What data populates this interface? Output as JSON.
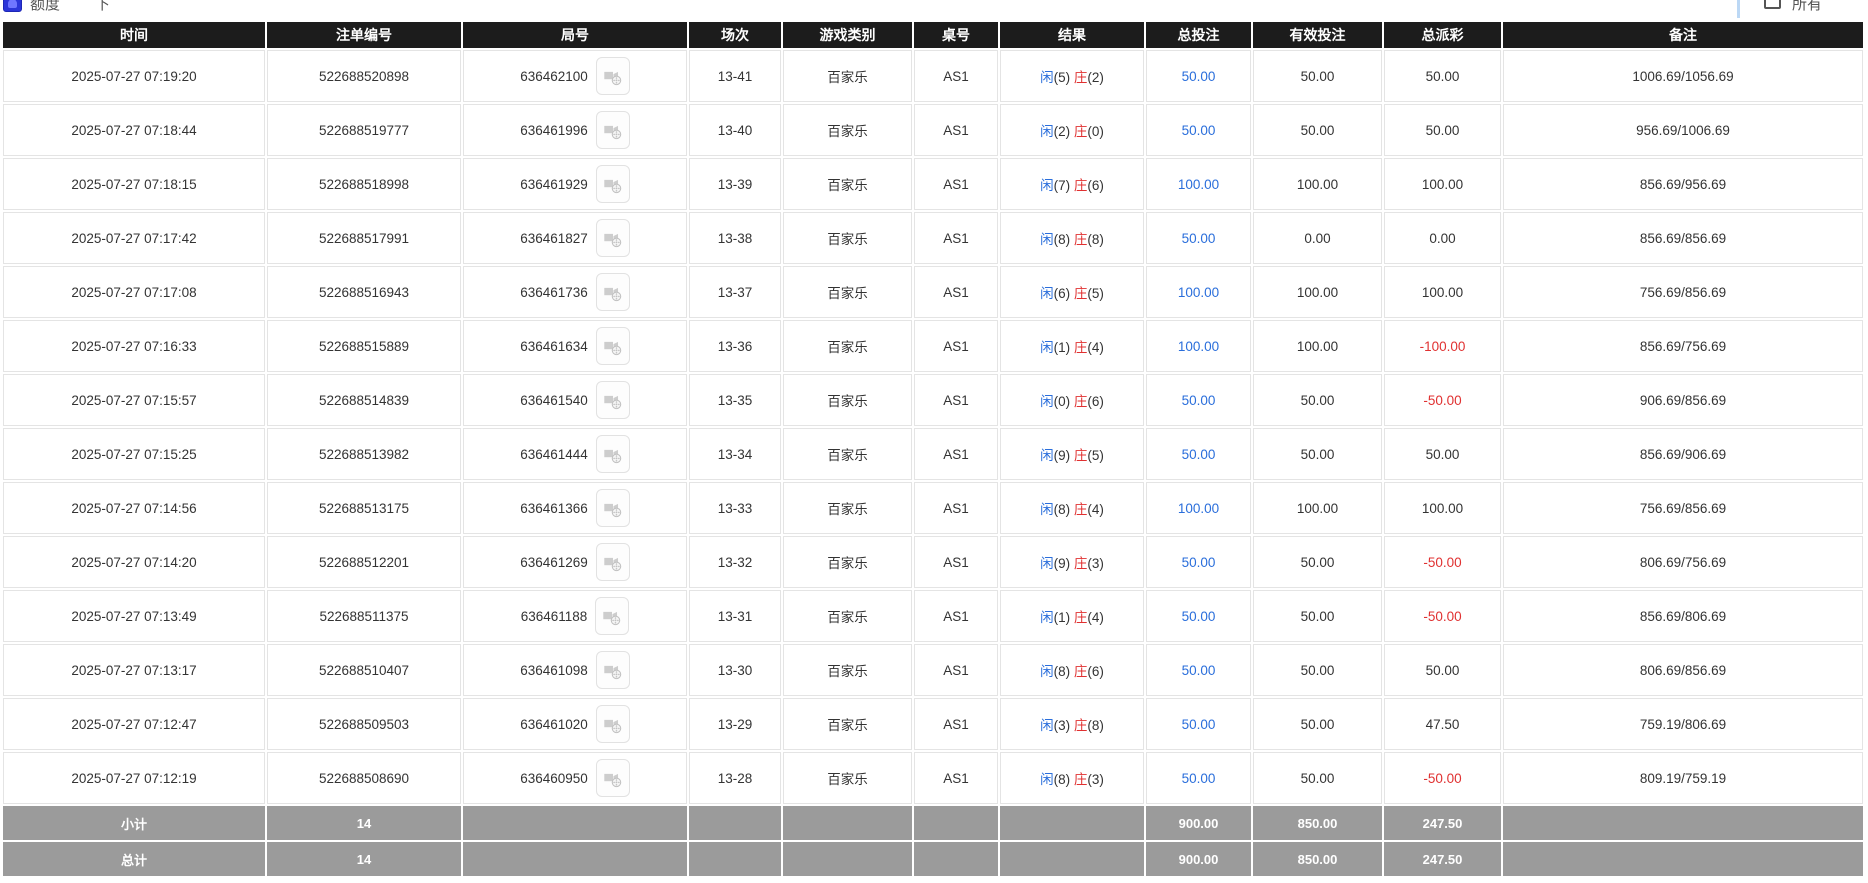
{
  "page": {
    "topbar": {
      "left_text_fragment": "额度",
      "left_text_fragment2": "下",
      "right_label_fragment": "所有"
    },
    "colors": {
      "header_bg": "#1c1c1c",
      "summary_bg": "#9b9b9b",
      "link_blue": "#2a6edb",
      "negative_red": "#e03131"
    },
    "table": {
      "headers": [
        "时间",
        "注单编号",
        "局号",
        "场次",
        "游戏类别",
        "桌号",
        "结果",
        "总投注",
        "有效投注",
        "总派彩",
        "备注"
      ],
      "rows": [
        {
          "time": "2025-07-27 07:19:20",
          "bet_id": "522688520898",
          "round_no": "636462100",
          "session": "13-41",
          "game_type": "百家乐",
          "table_no": "AS1",
          "result": {
            "player_label": "闲",
            "player_score": "5",
            "banker_label": "庄",
            "banker_score": "2"
          },
          "total_bet": "50.00",
          "valid_bet": "50.00",
          "payout": "50.00",
          "remark": "1006.69/1056.69"
        },
        {
          "time": "2025-07-27 07:18:44",
          "bet_id": "522688519777",
          "round_no": "636461996",
          "session": "13-40",
          "game_type": "百家乐",
          "table_no": "AS1",
          "result": {
            "player_label": "闲",
            "player_score": "2",
            "banker_label": "庄",
            "banker_score": "0"
          },
          "total_bet": "50.00",
          "valid_bet": "50.00",
          "payout": "50.00",
          "remark": "956.69/1006.69"
        },
        {
          "time": "2025-07-27 07:18:15",
          "bet_id": "522688518998",
          "round_no": "636461929",
          "session": "13-39",
          "game_type": "百家乐",
          "table_no": "AS1",
          "result": {
            "player_label": "闲",
            "player_score": "7",
            "banker_label": "庄",
            "banker_score": "6"
          },
          "total_bet": "100.00",
          "valid_bet": "100.00",
          "payout": "100.00",
          "remark": "856.69/956.69"
        },
        {
          "time": "2025-07-27 07:17:42",
          "bet_id": "522688517991",
          "round_no": "636461827",
          "session": "13-38",
          "game_type": "百家乐",
          "table_no": "AS1",
          "result": {
            "player_label": "闲",
            "player_score": "8",
            "banker_label": "庄",
            "banker_score": "8"
          },
          "total_bet": "50.00",
          "valid_bet": "0.00",
          "payout": "0.00",
          "remark": "856.69/856.69"
        },
        {
          "time": "2025-07-27 07:17:08",
          "bet_id": "522688516943",
          "round_no": "636461736",
          "session": "13-37",
          "game_type": "百家乐",
          "table_no": "AS1",
          "result": {
            "player_label": "闲",
            "player_score": "6",
            "banker_label": "庄",
            "banker_score": "5"
          },
          "total_bet": "100.00",
          "valid_bet": "100.00",
          "payout": "100.00",
          "remark": "756.69/856.69"
        },
        {
          "time": "2025-07-27 07:16:33",
          "bet_id": "522688515889",
          "round_no": "636461634",
          "session": "13-36",
          "game_type": "百家乐",
          "table_no": "AS1",
          "result": {
            "player_label": "闲",
            "player_score": "1",
            "banker_label": "庄",
            "banker_score": "4"
          },
          "total_bet": "100.00",
          "valid_bet": "100.00",
          "payout": "-100.00",
          "remark": "856.69/756.69"
        },
        {
          "time": "2025-07-27 07:15:57",
          "bet_id": "522688514839",
          "round_no": "636461540",
          "session": "13-35",
          "game_type": "百家乐",
          "table_no": "AS1",
          "result": {
            "player_label": "闲",
            "player_score": "0",
            "banker_label": "庄",
            "banker_score": "6"
          },
          "total_bet": "50.00",
          "valid_bet": "50.00",
          "payout": "-50.00",
          "remark": "906.69/856.69"
        },
        {
          "time": "2025-07-27 07:15:25",
          "bet_id": "522688513982",
          "round_no": "636461444",
          "session": "13-34",
          "game_type": "百家乐",
          "table_no": "AS1",
          "result": {
            "player_label": "闲",
            "player_score": "9",
            "banker_label": "庄",
            "banker_score": "5"
          },
          "total_bet": "50.00",
          "valid_bet": "50.00",
          "payout": "50.00",
          "remark": "856.69/906.69"
        },
        {
          "time": "2025-07-27 07:14:56",
          "bet_id": "522688513175",
          "round_no": "636461366",
          "session": "13-33",
          "game_type": "百家乐",
          "table_no": "AS1",
          "result": {
            "player_label": "闲",
            "player_score": "8",
            "banker_label": "庄",
            "banker_score": "4"
          },
          "total_bet": "100.00",
          "valid_bet": "100.00",
          "payout": "100.00",
          "remark": "756.69/856.69"
        },
        {
          "time": "2025-07-27 07:14:20",
          "bet_id": "522688512201",
          "round_no": "636461269",
          "session": "13-32",
          "game_type": "百家乐",
          "table_no": "AS1",
          "result": {
            "player_label": "闲",
            "player_score": "9",
            "banker_label": "庄",
            "banker_score": "3"
          },
          "total_bet": "50.00",
          "valid_bet": "50.00",
          "payout": "-50.00",
          "remark": "806.69/756.69"
        },
        {
          "time": "2025-07-27 07:13:49",
          "bet_id": "522688511375",
          "round_no": "636461188",
          "session": "13-31",
          "game_type": "百家乐",
          "table_no": "AS1",
          "result": {
            "player_label": "闲",
            "player_score": "1",
            "banker_label": "庄",
            "banker_score": "4"
          },
          "total_bet": "50.00",
          "valid_bet": "50.00",
          "payout": "-50.00",
          "remark": "856.69/806.69"
        },
        {
          "time": "2025-07-27 07:13:17",
          "bet_id": "522688510407",
          "round_no": "636461098",
          "session": "13-30",
          "game_type": "百家乐",
          "table_no": "AS1",
          "result": {
            "player_label": "闲",
            "player_score": "8",
            "banker_label": "庄",
            "banker_score": "6"
          },
          "total_bet": "50.00",
          "valid_bet": "50.00",
          "payout": "50.00",
          "remark": "806.69/856.69"
        },
        {
          "time": "2025-07-27 07:12:47",
          "bet_id": "522688509503",
          "round_no": "636461020",
          "session": "13-29",
          "game_type": "百家乐",
          "table_no": "AS1",
          "result": {
            "player_label": "闲",
            "player_score": "3",
            "banker_label": "庄",
            "banker_score": "8"
          },
          "total_bet": "50.00",
          "valid_bet": "50.00",
          "payout": "47.50",
          "remark": "759.19/806.69"
        },
        {
          "time": "2025-07-27 07:12:19",
          "bet_id": "522688508690",
          "round_no": "636460950",
          "session": "13-28",
          "game_type": "百家乐",
          "table_no": "AS1",
          "result": {
            "player_label": "闲",
            "player_score": "8",
            "banker_label": "庄",
            "banker_score": "3"
          },
          "total_bet": "50.00",
          "valid_bet": "50.00",
          "payout": "-50.00",
          "remark": "809.19/759.19"
        }
      ],
      "subtotal": {
        "label": "小计",
        "count": "14",
        "total_bet": "900.00",
        "valid_bet": "850.00",
        "payout": "247.50"
      },
      "total": {
        "label": "总计",
        "count": "14",
        "total_bet": "900.00",
        "valid_bet": "850.00",
        "payout": "247.50"
      }
    }
  }
}
